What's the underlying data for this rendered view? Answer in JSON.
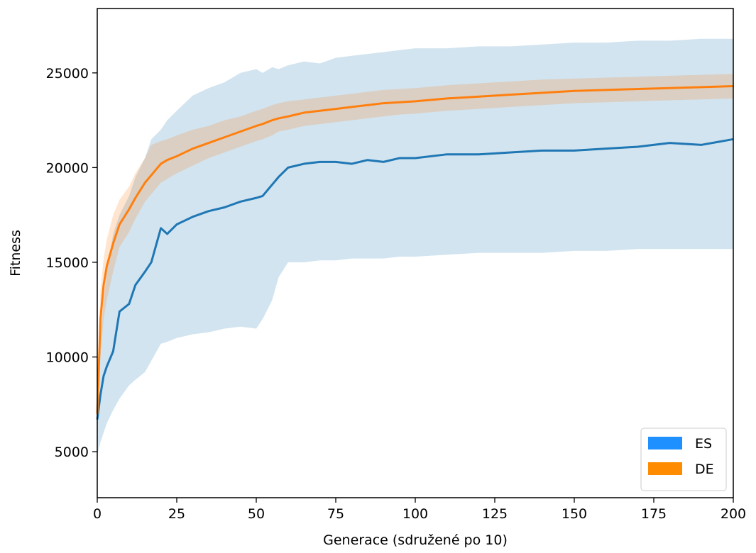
{
  "chart_data": {
    "type": "line-band",
    "xlabel": "Generace (sdružené po 10)",
    "ylabel": "Fitness",
    "x": [
      0,
      1,
      2,
      3,
      5,
      7,
      10,
      12,
      15,
      17,
      20,
      22,
      25,
      30,
      35,
      40,
      45,
      50,
      52,
      55,
      57,
      60,
      65,
      70,
      75,
      80,
      85,
      90,
      95,
      100,
      110,
      120,
      130,
      140,
      150,
      160,
      170,
      180,
      190,
      200
    ],
    "series": [
      {
        "name": "ES",
        "color": "#1f77b4",
        "legend_color": "#1e90ff",
        "values": [
          6700,
          8000,
          9000,
          9500,
          10300,
          12400,
          12800,
          13800,
          14500,
          15000,
          16800,
          16500,
          17000,
          17400,
          17700,
          17900,
          18200,
          18400,
          18500,
          19100,
          19500,
          20000,
          20200,
          20300,
          20300,
          20200,
          20400,
          20300,
          20500,
          20500,
          20700,
          20700,
          20800,
          20900,
          20900,
          21000,
          21100,
          21300,
          21200,
          21500
        ],
        "lower": [
          4800,
          5500,
          6000,
          6500,
          7200,
          7800,
          8500,
          8800,
          9200,
          9800,
          10700,
          10800,
          11000,
          11200,
          11300,
          11500,
          11600,
          11500,
          12000,
          13000,
          14200,
          15000,
          15000,
          15100,
          15100,
          15200,
          15200,
          15200,
          15300,
          15300,
          15400,
          15500,
          15500,
          15500,
          15600,
          15600,
          15700,
          15700,
          15700,
          15700
        ],
        "upper": [
          8500,
          11000,
          13000,
          14500,
          16500,
          17500,
          18500,
          19500,
          20500,
          21500,
          22000,
          22500,
          23000,
          23800,
          24200,
          24500,
          25000,
          25200,
          25000,
          25300,
          25200,
          25400,
          25600,
          25500,
          25800,
          25900,
          26000,
          26100,
          26200,
          26300,
          26300,
          26400,
          26400,
          26500,
          26600,
          26600,
          26700,
          26700,
          26800,
          26800
        ]
      },
      {
        "name": "DE",
        "color": "#ff7f0e",
        "legend_color": "#ff8c00",
        "values": [
          7000,
          12000,
          13800,
          14800,
          16000,
          17000,
          17800,
          18400,
          19200,
          19600,
          20200,
          20400,
          20600,
          21000,
          21300,
          21600,
          21900,
          22200,
          22300,
          22500,
          22600,
          22700,
          22900,
          23000,
          23100,
          23200,
          23300,
          23400,
          23450,
          23500,
          23650,
          23750,
          23850,
          23950,
          24050,
          24100,
          24150,
          24200,
          24250,
          24300
        ],
        "lower": [
          6000,
          10000,
          12000,
          13000,
          14500,
          15800,
          16600,
          17300,
          18200,
          18600,
          19200,
          19400,
          19700,
          20100,
          20500,
          20800,
          21100,
          21400,
          21500,
          21700,
          21900,
          22000,
          22200,
          22300,
          22400,
          22500,
          22600,
          22700,
          22800,
          22850,
          23000,
          23100,
          23200,
          23300,
          23400,
          23450,
          23500,
          23550,
          23600,
          23650
        ],
        "upper": [
          8000,
          13500,
          15200,
          16200,
          17500,
          18300,
          19000,
          19700,
          20500,
          21200,
          21400,
          21500,
          21700,
          22000,
          22200,
          22500,
          22700,
          23000,
          23100,
          23300,
          23400,
          23500,
          23600,
          23700,
          23800,
          23900,
          24000,
          24100,
          24150,
          24200,
          24350,
          24450,
          24550,
          24650,
          24700,
          24750,
          24800,
          24850,
          24900,
          24950
        ]
      }
    ],
    "xlim": [
      0,
      200
    ],
    "xticks": [
      0,
      25,
      50,
      75,
      100,
      125,
      150,
      175,
      200
    ],
    "ylim": [
      2570,
      28400
    ],
    "yticks": [
      5000,
      10000,
      15000,
      20000,
      25000
    ],
    "legend": "lower right"
  }
}
